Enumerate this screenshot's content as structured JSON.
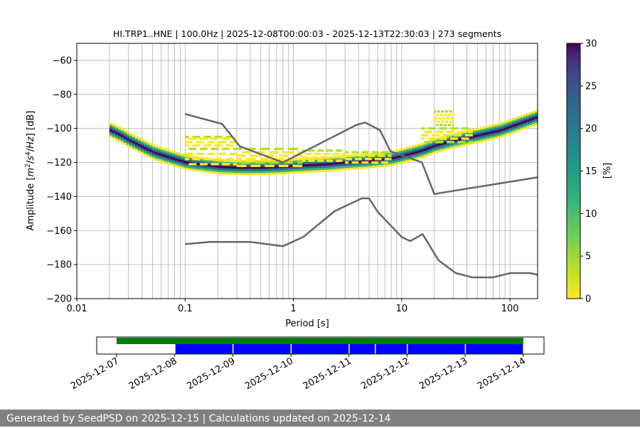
{
  "chart_data": [
    {
      "type": "heatmap",
      "title": "HI.TRP1..HNE | 100.0Hz | 2025-12-08T00:00:03 - 2025-12-13T22:30:03 | 273 segments",
      "xlabel": "Period [s]",
      "ylabel_parts": [
        "Amplitude [",
        "m",
        "2",
        "/",
        "s",
        "4",
        "/",
        "Hz",
        "] [dB]"
      ],
      "x_scale": "log",
      "xlim": [
        0.01,
        180
      ],
      "ylim": [
        -200,
        -50
      ],
      "x_ticks": [
        0.01,
        0.1,
        1,
        10,
        100
      ],
      "x_tick_labels": [
        "0.01",
        "0.1",
        "1",
        "10",
        "100"
      ],
      "y_ticks": [
        -200,
        -180,
        -160,
        -140,
        -120,
        -100,
        -80,
        -60
      ],
      "y_tick_labels": [
        "−200",
        "−180",
        "−160",
        "−140",
        "−120",
        "−100",
        "−80",
        "−60"
      ],
      "grid": true,
      "colorbar": {
        "label": "[%]",
        "range": [
          0,
          30
        ],
        "ticks": [
          0,
          5,
          10,
          15,
          20,
          25,
          30
        ],
        "tick_labels": [
          "0",
          "5",
          "10",
          "15",
          "20",
          "25",
          "30"
        ],
        "colormap": "viridis_r"
      },
      "psd_mode": [
        [
          0.02,
          -101
        ],
        [
          0.025,
          -104
        ],
        [
          0.03,
          -107
        ],
        [
          0.04,
          -111
        ],
        [
          0.05,
          -114
        ],
        [
          0.07,
          -117
        ],
        [
          0.1,
          -120
        ],
        [
          0.15,
          -121.5
        ],
        [
          0.2,
          -122.5
        ],
        [
          0.3,
          -123
        ],
        [
          0.5,
          -123
        ],
        [
          0.8,
          -122.5
        ],
        [
          1,
          -122
        ],
        [
          2,
          -121
        ],
        [
          3,
          -120
        ],
        [
          5,
          -119
        ],
        [
          8,
          -117.5
        ],
        [
          10,
          -116
        ],
        [
          15,
          -113
        ],
        [
          20,
          -110
        ],
        [
          30,
          -107
        ],
        [
          50,
          -104
        ],
        [
          80,
          -101
        ],
        [
          120,
          -97
        ],
        [
          180,
          -93
        ]
      ],
      "psd_spread_db": 2.5,
      "psd_spread_colors": [
        "#fde725",
        "#b5de2b",
        "#6ece58",
        "#35b779",
        "#1f9e89",
        "#26828e",
        "#31688e",
        "#3e4989",
        "#482878",
        "#440154"
      ],
      "scatter_highs": [
        {
          "x_range": [
            0.1,
            0.3
          ],
          "y": [
            -105,
            -106,
            -108,
            -110,
            -112,
            -115,
            -118,
            -121
          ]
        },
        {
          "x_range": [
            0.3,
            1.2
          ],
          "y": [
            -112,
            -114,
            -116,
            -118,
            -120,
            -122
          ]
        },
        {
          "x_range": [
            1.2,
            3
          ],
          "y": [
            -113,
            -115,
            -117,
            -119
          ]
        },
        {
          "x_range": [
            3,
            8
          ],
          "y": [
            -114,
            -116,
            -118,
            -120
          ]
        },
        {
          "x_range": [
            15,
            45
          ],
          "y": [
            -100,
            -102,
            -104,
            -106,
            -108
          ]
        },
        {
          "x_range": [
            20,
            30
          ],
          "y": [
            -90,
            -92,
            -94,
            -96,
            -98
          ]
        }
      ],
      "nhnm": [
        [
          0.1,
          -91.5
        ],
        [
          0.22,
          -97.4
        ],
        [
          0.32,
          -110.5
        ],
        [
          0.8,
          -120
        ],
        [
          3.8,
          -98
        ],
        [
          4.6,
          -96.5
        ],
        [
          6.3,
          -101
        ],
        [
          7.9,
          -113.5
        ],
        [
          15.4,
          -120
        ],
        [
          20,
          -138.5
        ],
        [
          180,
          -128.7
        ]
      ],
      "nlnm": [
        [
          0.1,
          -168
        ],
        [
          0.17,
          -166.7
        ],
        [
          0.4,
          -166.7
        ],
        [
          0.8,
          -169.2
        ],
        [
          1.24,
          -163.7
        ],
        [
          2.4,
          -148.6
        ],
        [
          4.3,
          -141.1
        ],
        [
          5,
          -141.1
        ],
        [
          6,
          -149
        ],
        [
          10,
          -163.8
        ],
        [
          12,
          -166.2
        ],
        [
          15.6,
          -162.1
        ],
        [
          21.9,
          -177.5
        ],
        [
          31.6,
          -185
        ],
        [
          45,
          -187.5
        ],
        [
          70,
          -187.5
        ],
        [
          101,
          -185
        ],
        [
          154,
          -185
        ],
        [
          180,
          -186
        ]
      ]
    },
    {
      "type": "timeline",
      "tick_labels": [
        "2025-12-07",
        "2025-12-08",
        "2025-12-09",
        "2025-12-10",
        "2025-12-11",
        "2025-12-12",
        "2025-12-13",
        "2025-12-14"
      ],
      "tick_days": [
        0,
        1,
        2,
        3,
        4,
        5,
        6,
        7
      ],
      "available_range_days": [
        0,
        7
      ],
      "available_color": "#008000",
      "segments_days": [
        [
          1,
          2
        ],
        [
          2,
          3
        ],
        [
          3,
          4
        ],
        [
          4,
          4.45
        ],
        [
          4.45,
          5
        ],
        [
          5,
          6
        ],
        [
          6,
          7
        ]
      ],
      "segment_color": "#0000ff"
    }
  ],
  "footer": {
    "text": "Generated by SeedPSD on 2025-12-15 | Calculations updated on 2025-12-14"
  }
}
